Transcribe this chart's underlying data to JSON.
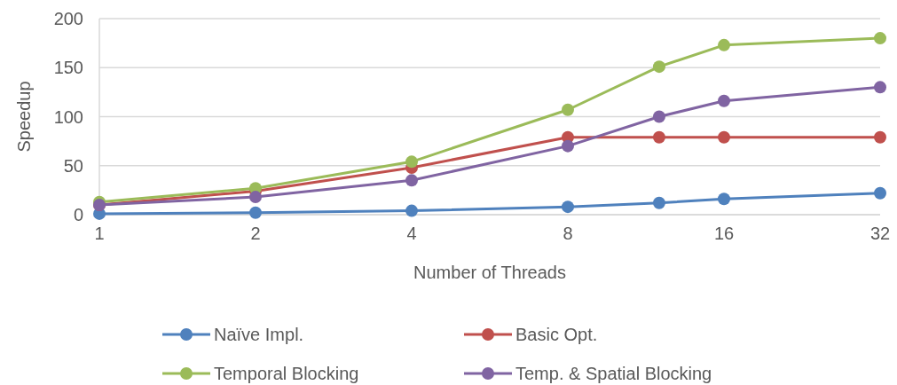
{
  "chart_data": {
    "type": "line",
    "xlabel": "Number of Threads",
    "ylabel": "Speedup",
    "log": "x",
    "x": [
      1,
      2,
      4,
      8,
      12,
      16,
      32
    ],
    "xlim": [
      1,
      32
    ],
    "xticks": [
      1,
      2,
      4,
      8,
      16,
      32
    ],
    "ylim": [
      0,
      200
    ],
    "yticks": [
      0,
      50,
      100,
      150,
      200
    ],
    "grid": "y",
    "legend": "bottom",
    "marker": "circle",
    "line_style": "solid",
    "series": [
      {
        "name": "Naïve Impl.",
        "color": "#4f81bd",
        "values": [
          1,
          2,
          4,
          8,
          12,
          16,
          22
        ]
      },
      {
        "name": "Basic Opt.",
        "color": "#c0504d",
        "values": [
          10,
          24,
          48,
          79,
          79,
          79,
          79
        ]
      },
      {
        "name": "Temporal Blocking",
        "color": "#9bbb59",
        "values": [
          13,
          27,
          54,
          107,
          151,
          173,
          180
        ]
      },
      {
        "name": "Temp. & Spatial Blocking",
        "color": "#8064a2",
        "values": [
          10,
          18,
          35,
          70,
          100,
          116,
          130
        ]
      }
    ]
  }
}
